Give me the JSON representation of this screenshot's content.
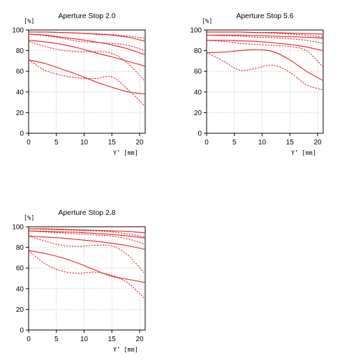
{
  "chart_data": [
    {
      "type": "line",
      "title": "Aperture Stop 2.0",
      "y_unit_label": "[%]",
      "x_unit_label": "Y’ [mm]",
      "xlim": [
        0,
        21
      ],
      "ylim": [
        0,
        100
      ],
      "x_ticks": [
        "0",
        "5",
        "10",
        "15",
        "20"
      ],
      "y_ticks": [
        "0",
        "20",
        "40",
        "60",
        "80",
        "100"
      ],
      "grid": true,
      "series": [
        {
          "style": "solid",
          "x": [
            0,
            3,
            6,
            9,
            12,
            15,
            18,
            21
          ],
          "y": [
            98,
            98,
            97.5,
            97,
            96,
            95,
            93,
            89
          ]
        },
        {
          "style": "dotted",
          "x": [
            0,
            3,
            6,
            9,
            12,
            15,
            18,
            21
          ],
          "y": [
            98,
            98,
            97.5,
            97,
            96.5,
            95.5,
            94,
            92
          ]
        },
        {
          "style": "solid",
          "x": [
            0,
            3,
            6,
            9,
            12,
            15,
            18,
            21
          ],
          "y": [
            96,
            95,
            93,
            91,
            88.5,
            85.5,
            81.5,
            76
          ]
        },
        {
          "style": "dotted",
          "x": [
            0,
            3,
            6,
            9,
            12,
            15,
            18,
            21
          ],
          "y": [
            96,
            94.5,
            92,
            89,
            88,
            87,
            85,
            80
          ]
        },
        {
          "style": "solid",
          "x": [
            0,
            3,
            6,
            9,
            12,
            15,
            18,
            21
          ],
          "y": [
            90,
            88.5,
            86,
            82.5,
            78,
            74,
            69.5,
            65
          ]
        },
        {
          "style": "dotted",
          "x": [
            0,
            3,
            6,
            9,
            12,
            15,
            18,
            21
          ],
          "y": [
            89,
            84,
            80.5,
            79,
            79,
            77.5,
            67,
            50
          ]
        },
        {
          "style": "solid",
          "x": [
            0,
            3,
            6,
            9,
            12,
            15,
            18,
            21
          ],
          "y": [
            71,
            67.5,
            62,
            56.5,
            50,
            44.5,
            40,
            38
          ]
        },
        {
          "style": "dotted",
          "x": [
            0,
            3,
            6,
            9,
            12,
            15,
            18,
            21
          ],
          "y": [
            71,
            61,
            56,
            53.5,
            53,
            54.5,
            42,
            26
          ]
        }
      ]
    },
    {
      "type": "line",
      "title": "Aperture Stop 5.6",
      "y_unit_label": "[%]",
      "x_unit_label": "Y’ [mm]",
      "xlim": [
        0,
        21
      ],
      "ylim": [
        0,
        100
      ],
      "x_ticks": [
        "0",
        "5",
        "10",
        "15",
        "20"
      ],
      "y_ticks": [
        "0",
        "20",
        "40",
        "60",
        "80",
        "100"
      ],
      "grid": true,
      "series": [
        {
          "style": "solid",
          "x": [
            0,
            3,
            6,
            9,
            12,
            15,
            18,
            21
          ],
          "y": [
            98,
            98,
            98,
            97.5,
            97.5,
            97,
            96.5,
            96
          ]
        },
        {
          "style": "dotted",
          "x": [
            0,
            3,
            6,
            9,
            12,
            15,
            18,
            21
          ],
          "y": [
            98,
            98,
            98,
            97.5,
            97,
            96,
            95,
            93
          ]
        },
        {
          "style": "solid",
          "x": [
            0,
            3,
            6,
            9,
            12,
            15,
            18,
            21
          ],
          "y": [
            95,
            95,
            95,
            94.5,
            94,
            93.5,
            93,
            92
          ]
        },
        {
          "style": "dotted",
          "x": [
            0,
            3,
            6,
            9,
            12,
            15,
            18,
            21
          ],
          "y": [
            95,
            94.5,
            94,
            93,
            92.5,
            91.5,
            90,
            87
          ]
        },
        {
          "style": "solid",
          "x": [
            0,
            3,
            6,
            9,
            12,
            15,
            18,
            21
          ],
          "y": [
            90,
            90,
            89.5,
            89,
            87.5,
            86,
            83.5,
            80
          ]
        },
        {
          "style": "dotted",
          "x": [
            0,
            3,
            6,
            9,
            12,
            15,
            18,
            21
          ],
          "y": [
            90,
            89,
            87,
            86,
            85,
            84,
            80,
            64
          ]
        },
        {
          "style": "solid",
          "x": [
            0,
            3,
            6,
            9,
            12,
            15,
            18,
            21
          ],
          "y": [
            78,
            78.5,
            80,
            81,
            79,
            71,
            60,
            51
          ]
        },
        {
          "style": "dotted",
          "x": [
            0,
            3,
            6,
            9,
            12,
            15,
            18,
            21
          ],
          "y": [
            78,
            70,
            61,
            63,
            66,
            59,
            47,
            42
          ]
        }
      ]
    },
    {
      "type": "line",
      "title": "Aperture Stop 2.8",
      "y_unit_label": "[%]",
      "x_unit_label": "Y’ [mm]",
      "xlim": [
        0,
        21
      ],
      "ylim": [
        0,
        100
      ],
      "x_ticks": [
        "0",
        "5",
        "10",
        "15",
        "20"
      ],
      "y_ticks": [
        "0",
        "20",
        "40",
        "60",
        "80",
        "100"
      ],
      "grid": true,
      "series": [
        {
          "style": "solid",
          "x": [
            0,
            3,
            6,
            9,
            12,
            15,
            18,
            21
          ],
          "y": [
            98,
            98,
            97.5,
            97,
            96.5,
            96,
            95.5,
            94
          ]
        },
        {
          "style": "dotted",
          "x": [
            0,
            3,
            6,
            9,
            12,
            15,
            18,
            21
          ],
          "y": [
            98,
            97.5,
            97,
            96.5,
            96,
            95,
            93,
            90
          ]
        },
        {
          "style": "solid",
          "x": [
            0,
            3,
            6,
            9,
            12,
            15,
            18,
            21
          ],
          "y": [
            96,
            95.5,
            95,
            94.5,
            93.5,
            92.5,
            91,
            89
          ]
        },
        {
          "style": "dotted",
          "x": [
            0,
            3,
            6,
            9,
            12,
            15,
            18,
            21
          ],
          "y": [
            96,
            95,
            94,
            93,
            92,
            91,
            88,
            83
          ]
        },
        {
          "style": "solid",
          "x": [
            0,
            3,
            6,
            9,
            12,
            15,
            18,
            21
          ],
          "y": [
            91,
            90,
            89,
            87.5,
            86,
            84,
            81.5,
            78
          ]
        },
        {
          "style": "dotted",
          "x": [
            0,
            3,
            6,
            9,
            12,
            15,
            18,
            21
          ],
          "y": [
            91,
            86,
            82,
            81,
            82,
            81.5,
            72,
            54
          ]
        },
        {
          "style": "solid",
          "x": [
            0,
            3,
            6,
            9,
            12,
            15,
            18,
            21
          ],
          "y": [
            77,
            74,
            70,
            64.5,
            58,
            52,
            49,
            46
          ]
        },
        {
          "style": "dotted",
          "x": [
            0,
            3,
            6,
            9,
            12,
            15,
            18,
            21
          ],
          "y": [
            77,
            64,
            57,
            55,
            56,
            53,
            45,
            30
          ]
        }
      ]
    }
  ]
}
